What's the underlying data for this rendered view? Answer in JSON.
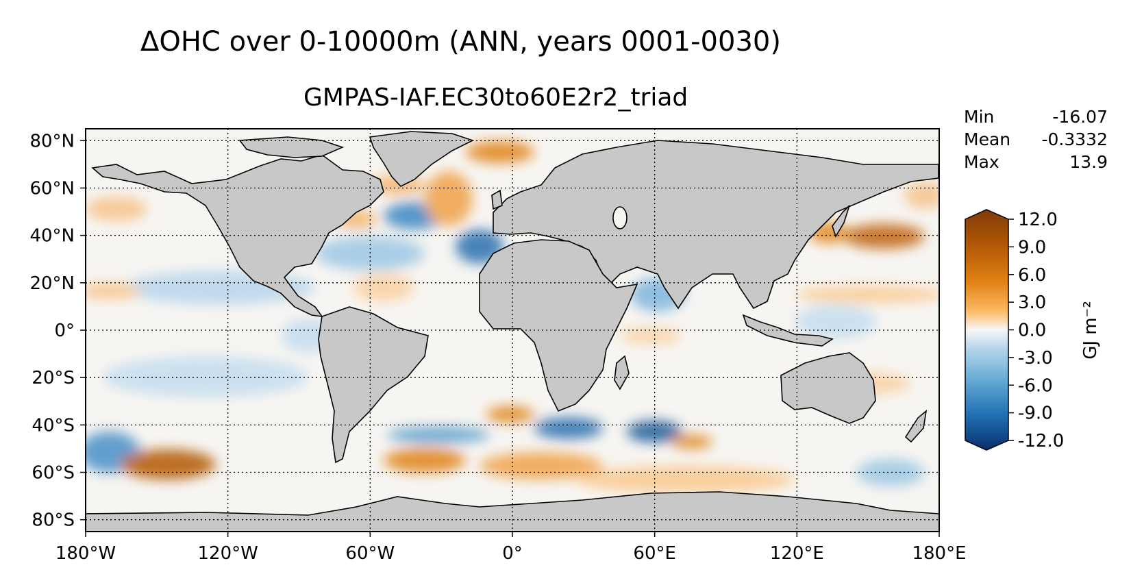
{
  "title": "ΔOHC over 0-10000m (ANN, years 0001-0030)",
  "subtitle": "GMPAS-IAF.EC30to60E2r2_triad",
  "stats": {
    "min_label": "Min",
    "min_value": "-16.07",
    "mean_label": "Mean",
    "mean_value": "-0.3332",
    "max_label": "Max",
    "max_value": "13.9"
  },
  "map": {
    "lat_ticks": [
      "80°N",
      "60°N",
      "40°N",
      "20°N",
      "0°",
      "20°S",
      "40°S",
      "60°S",
      "80°S"
    ],
    "lon_ticks": [
      "180°W",
      "120°W",
      "60°W",
      "0°",
      "60°E",
      "120°E",
      "180°E"
    ],
    "land_color": "#c8c8c8",
    "ocean_base_color": "#f7f5f2",
    "grid": "dotted"
  },
  "colorbar": {
    "label": "GJ m⁻²",
    "ticks": [
      "12.0",
      "9.0",
      "6.0",
      "3.0",
      "0.0",
      "-3.0",
      "-6.0",
      "-9.0",
      "-12.0"
    ],
    "range": [
      -12,
      12
    ],
    "colormap": "blue-white-orange-brown diverging",
    "extend": "both"
  }
}
